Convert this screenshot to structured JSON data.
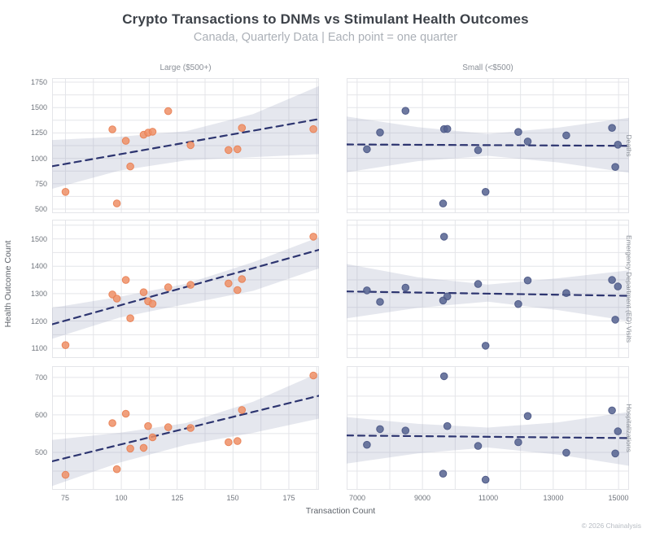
{
  "header": {
    "title": "Crypto Transactions to DNMs vs Stimulant Health Outcomes",
    "subtitle": "Canada, Quarterly Data | Each point = one quarter"
  },
  "axes": {
    "x_title": "Transaction Count",
    "y_title": "Health Outcome Count"
  },
  "columns": [
    {
      "key": "large",
      "label": "Large ($500+)"
    },
    {
      "key": "small",
      "label": "Small (<$500)"
    }
  ],
  "rows": [
    {
      "key": "deaths",
      "label": "Deaths"
    },
    {
      "key": "ed",
      "label": "Emergency Department (ED) Visits"
    },
    {
      "key": "hosp",
      "label": "Hospitalizations"
    }
  ],
  "footer": {
    "credit": "© 2026 Chainalysis"
  },
  "colors": {
    "accent_large": "#ef8f66",
    "accent_large_stroke": "#e87e52",
    "accent_small": "#55618f",
    "accent_small_stroke": "#4a5685",
    "trend": "#2d3570",
    "band": "#97a0bd",
    "gridline": "#e4e5e9",
    "title_text": "#3d4249",
    "subtitle_text": "#abb0b7",
    "axis_text": "#70757d",
    "facet_text": "#8a8f97",
    "footer_text": "#b7bcc3"
  },
  "chart_data": {
    "type": "scatter",
    "title": "Crypto Transactions to DNMs vs Stimulant Health Outcomes",
    "subtitle": "Canada, Quarterly Data | Each point = one quarter",
    "xlabel": "Transaction Count",
    "ylabel": "Health Outcome Count",
    "facet_columns": [
      "Large ($500+)",
      "Small (<$500)"
    ],
    "facet_rows": [
      "Deaths",
      "Emergency Department (ED) Visits",
      "Hospitalizations"
    ],
    "legend": "none",
    "grid": true,
    "trend_style": "dashed with confidence band",
    "panels": [
      {
        "row": "Deaths",
        "col": "Large ($500+)",
        "row_key": "deaths",
        "col_key": "large",
        "x_domain": [
          69,
          188.5
        ],
        "y_domain": [
          460,
          1790
        ],
        "x_tick_labels": [
          75,
          100,
          125,
          150,
          175
        ],
        "x_grid_step": 12.5,
        "y_tick_labels": [
          500,
          750,
          1000,
          1250,
          1500,
          1750
        ],
        "y_grid_step": 125,
        "points": [
          [
            75,
            670
          ],
          [
            96,
            1285
          ],
          [
            98,
            556
          ],
          [
            102,
            1172
          ],
          [
            104,
            920
          ],
          [
            110,
            1232
          ],
          [
            112,
            1252
          ],
          [
            114,
            1262
          ],
          [
            121,
            1465
          ],
          [
            131,
            1130
          ],
          [
            148,
            1082
          ],
          [
            152,
            1090
          ],
          [
            154,
            1300
          ],
          [
            186,
            1288
          ]
        ],
        "trend": [
          [
            69,
            922
          ],
          [
            188.5,
            1387
          ]
        ],
        "band": {
          "x": [
            69,
            99,
            129,
            159,
            188.5
          ],
          "upper": [
            1180,
            1212,
            1268,
            1435,
            1712
          ],
          "lower": [
            700,
            878,
            980,
            1012,
            1042
          ]
        }
      },
      {
        "row": "Deaths",
        "col": "Small (<$500)",
        "row_key": "deaths",
        "col_key": "small",
        "x_domain": [
          6680,
          15320
        ],
        "y_domain": [
          460,
          1790
        ],
        "x_tick_labels": [
          7000,
          9000,
          11000,
          13000,
          15000
        ],
        "x_grid_step": 1000,
        "y_tick_labels": [
          500,
          750,
          1000,
          1250,
          1500,
          1750
        ],
        "y_grid_step": 125,
        "points": [
          [
            7300,
            1090
          ],
          [
            7700,
            1255
          ],
          [
            8480,
            1468
          ],
          [
            9630,
            555
          ],
          [
            9660,
            1288
          ],
          [
            9760,
            1290
          ],
          [
            10700,
            1080
          ],
          [
            10930,
            670
          ],
          [
            11930,
            1260
          ],
          [
            12220,
            1166
          ],
          [
            13400,
            1226
          ],
          [
            14800,
            1300
          ],
          [
            14900,
            915
          ],
          [
            14980,
            1135
          ]
        ],
        "trend": [
          [
            6680,
            1137
          ],
          [
            15320,
            1123
          ]
        ],
        "band": {
          "x": [
            6680,
            8850,
            11000,
            13150,
            15320
          ],
          "upper": [
            1412,
            1308,
            1240,
            1302,
            1400
          ],
          "lower": [
            862,
            972,
            1025,
            960,
            858
          ]
        }
      },
      {
        "row": "Emergency Department (ED) Visits",
        "col": "Large ($500+)",
        "row_key": "ed",
        "col_key": "large",
        "x_domain": [
          69,
          188.5
        ],
        "y_domain": [
          1065,
          1570
        ],
        "x_tick_labels": [
          75,
          100,
          125,
          150,
          175
        ],
        "x_grid_step": 12.5,
        "y_tick_labels": [
          1100,
          1200,
          1300,
          1400,
          1500
        ],
        "y_grid_step": 50,
        "points": [
          [
            75,
            1112
          ],
          [
            96,
            1297
          ],
          [
            98,
            1282
          ],
          [
            102,
            1350
          ],
          [
            104,
            1210
          ],
          [
            110,
            1305
          ],
          [
            112,
            1272
          ],
          [
            114,
            1263
          ],
          [
            121,
            1323
          ],
          [
            131,
            1332
          ],
          [
            148,
            1337
          ],
          [
            152,
            1313
          ],
          [
            154,
            1353
          ],
          [
            186,
            1508
          ]
        ],
        "trend": [
          [
            69,
            1188
          ],
          [
            188.5,
            1460
          ]
        ],
        "band": {
          "x": [
            69,
            99,
            129,
            159,
            188.5
          ],
          "upper": [
            1248,
            1288,
            1336,
            1415,
            1506
          ],
          "lower": [
            1135,
            1212,
            1262,
            1310,
            1392
          ]
        }
      },
      {
        "row": "Emergency Department (ED) Visits",
        "col": "Small (<$500)",
        "row_key": "ed",
        "col_key": "small",
        "x_domain": [
          6680,
          15320
        ],
        "y_domain": [
          1065,
          1570
        ],
        "x_tick_labels": [
          7000,
          9000,
          11000,
          13000,
          15000
        ],
        "x_grid_step": 1000,
        "y_tick_labels": [
          1100,
          1200,
          1300,
          1400,
          1500
        ],
        "y_grid_step": 50,
        "points": [
          [
            7300,
            1312
          ],
          [
            7700,
            1270
          ],
          [
            8480,
            1322
          ],
          [
            9630,
            1275
          ],
          [
            9660,
            1508
          ],
          [
            9760,
            1290
          ],
          [
            10700,
            1335
          ],
          [
            10930,
            1110
          ],
          [
            11930,
            1262
          ],
          [
            12220,
            1348
          ],
          [
            13400,
            1302
          ],
          [
            14800,
            1350
          ],
          [
            14900,
            1205
          ],
          [
            14980,
            1326
          ]
        ],
        "trend": [
          [
            6680,
            1308
          ],
          [
            15320,
            1292
          ]
        ],
        "band": {
          "x": [
            6680,
            8850,
            11000,
            13150,
            15320
          ],
          "upper": [
            1408,
            1360,
            1333,
            1356,
            1385
          ],
          "lower": [
            1210,
            1248,
            1271,
            1240,
            1200
          ]
        }
      },
      {
        "row": "Hospitalizations",
        "col": "Large ($500+)",
        "row_key": "hosp",
        "col_key": "large",
        "x_domain": [
          69,
          188.5
        ],
        "y_domain": [
          400,
          730
        ],
        "x_tick_labels": [
          75,
          100,
          125,
          150,
          175
        ],
        "x_grid_step": 12.5,
        "y_tick_labels": [
          500,
          600,
          700
        ],
        "y_grid_step": 50,
        "points": [
          [
            75,
            440
          ],
          [
            96,
            578
          ],
          [
            98,
            455
          ],
          [
            102,
            603
          ],
          [
            104,
            510
          ],
          [
            110,
            512
          ],
          [
            112,
            570
          ],
          [
            114,
            540
          ],
          [
            121,
            567
          ],
          [
            131,
            565
          ],
          [
            148,
            527
          ],
          [
            152,
            530
          ],
          [
            154,
            613
          ],
          [
            186,
            705
          ]
        ],
        "trend": [
          [
            69,
            476
          ],
          [
            188.5,
            651
          ]
        ],
        "band": {
          "x": [
            69,
            99,
            129,
            159,
            188.5
          ],
          "upper": [
            533,
            552,
            578,
            635,
            712
          ],
          "lower": [
            410,
            472,
            520,
            552,
            590
          ]
        }
      },
      {
        "row": "Hospitalizations",
        "col": "Small (<$500)",
        "row_key": "hosp",
        "col_key": "small",
        "x_domain": [
          6680,
          15320
        ],
        "y_domain": [
          400,
          730
        ],
        "x_tick_labels": [
          7000,
          9000,
          11000,
          13000,
          15000
        ],
        "x_grid_step": 1000,
        "y_tick_labels": [
          500,
          600,
          700
        ],
        "y_grid_step": 50,
        "points": [
          [
            7300,
            520
          ],
          [
            7700,
            562
          ],
          [
            8480,
            558
          ],
          [
            9630,
            443
          ],
          [
            9660,
            703
          ],
          [
            9760,
            570
          ],
          [
            10700,
            517
          ],
          [
            10930,
            427
          ],
          [
            11930,
            527
          ],
          [
            12220,
            597
          ],
          [
            13400,
            499
          ],
          [
            14800,
            612
          ],
          [
            14900,
            497
          ],
          [
            14980,
            556
          ]
        ],
        "trend": [
          [
            6680,
            545
          ],
          [
            15320,
            538
          ]
        ],
        "band": {
          "x": [
            6680,
            8850,
            11000,
            13150,
            15320
          ],
          "upper": [
            594,
            576,
            566,
            580,
            608
          ],
          "lower": [
            470,
            497,
            513,
            494,
            464
          ]
        }
      }
    ]
  }
}
